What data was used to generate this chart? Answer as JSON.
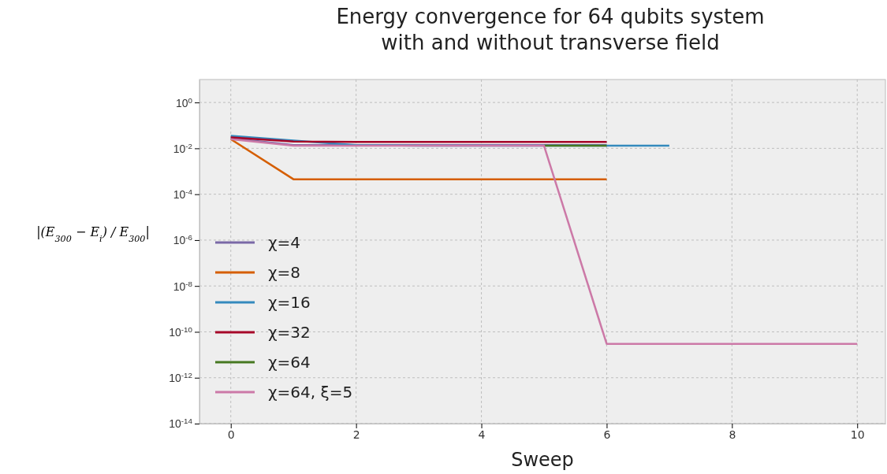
{
  "chart_data": {
    "type": "line",
    "title": "Energy convergence for 64 qubits system\nwith and without transverse field",
    "xlabel": "Sweep",
    "ylabel": "|(E$_{300}$ − E$_{i}$) / E$_{300}$|",
    "log": true,
    "grid": true,
    "legend": "left",
    "line_style": "solid",
    "xlim": [
      -0.5,
      10.45
    ],
    "xticks": [
      0,
      2,
      4,
      6,
      8,
      10
    ],
    "ylim": [
      1e-14,
      10
    ],
    "yticks": [
      {
        "value": 1e-14,
        "label": "10$^{-14}$"
      },
      {
        "value": 1e-12,
        "label": "10$^{-12}$"
      },
      {
        "value": 1e-10,
        "label": "10$^{-10}$"
      },
      {
        "value": 1e-08,
        "label": "10$^{-8}$"
      },
      {
        "value": 1e-06,
        "label": "10$^{-6}$"
      },
      {
        "value": 0.0001,
        "label": "10$^{-4}$"
      },
      {
        "value": 0.01,
        "label": "10$^{-2}$"
      },
      {
        "value": 1,
        "label": "10$^{0}$"
      }
    ],
    "series": [
      {
        "name": "χ=4",
        "color": "#7a68a6",
        "x": [
          0,
          1,
          2,
          3,
          4,
          5,
          6
        ],
        "values": [
          0.028,
          0.014,
          0.014,
          0.014,
          0.014,
          0.014,
          0.014
        ]
      },
      {
        "name": "χ=8",
        "color": "#d55e00",
        "x": [
          0,
          1,
          2,
          3,
          4,
          5,
          6
        ],
        "values": [
          0.025,
          0.00045,
          0.00045,
          0.00045,
          0.00045,
          0.00045,
          0.00045
        ]
      },
      {
        "name": "χ=16",
        "color": "#348abd",
        "x": [
          0,
          1,
          2,
          3,
          4,
          5,
          6,
          7
        ],
        "values": [
          0.035,
          0.022,
          0.014,
          0.013,
          0.013,
          0.013,
          0.013,
          0.013
        ]
      },
      {
        "name": "χ=32",
        "color": "#a60628",
        "x": [
          0,
          1,
          2,
          3,
          4,
          5,
          6
        ],
        "values": [
          0.03,
          0.02,
          0.019,
          0.019,
          0.019,
          0.019,
          0.019
        ]
      },
      {
        "name": "χ=64",
        "color": "#467821",
        "x": [
          5,
          6
        ],
        "values": [
          0.013,
          0.013
        ]
      },
      {
        "name": "χ=64, ξ=5",
        "color": "#cc79a7",
        "x": [
          0,
          1,
          2,
          3,
          4,
          5,
          6,
          7,
          8,
          9,
          10
        ],
        "values": [
          0.025,
          0.013,
          0.013,
          0.013,
          0.013,
          0.013,
          3e-11,
          3e-11,
          3e-11,
          3e-11,
          3e-11
        ]
      }
    ]
  }
}
